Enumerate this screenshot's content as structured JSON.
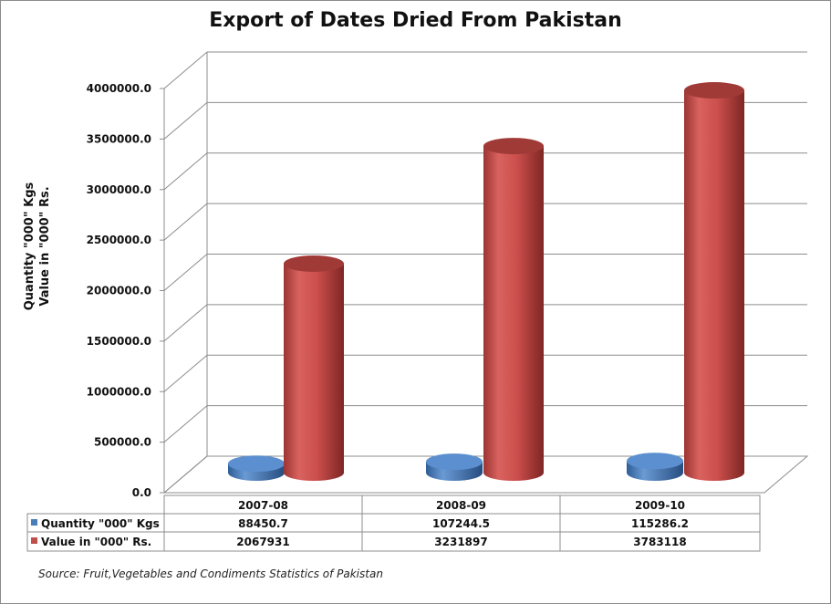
{
  "chart_data": {
    "type": "bar",
    "title": "Export of Dates Dried From Pakistan",
    "ylabel_lines": [
      "Quantity \"000\" Kgs",
      "Value in \"000\" Rs."
    ],
    "categories": [
      "2007-08",
      "2008-09",
      "2009-10"
    ],
    "series": [
      {
        "name": "Quantity \"000\" Kgs",
        "values": [
          88450.7,
          107244.5,
          115286.2
        ],
        "display": [
          "88450.7",
          "107244.5",
          "115286.2"
        ],
        "color": "#4a7ebb"
      },
      {
        "name": "Value in \"000\" Rs.",
        "values": [
          2067931,
          3231897,
          3783118
        ],
        "display": [
          "2067931",
          "3231897",
          "3783118"
        ],
        "color": "#c0504d"
      }
    ],
    "ylim": [
      0,
      4000000
    ],
    "yticks": [
      "0.0",
      "500000.0",
      "1000000.0",
      "1500000.0",
      "2000000.0",
      "2500000.0",
      "3000000.0",
      "3500000.0",
      "4000000.0"
    ],
    "grid": true,
    "data_table": true,
    "source": "Source: Fruit,Vegetables and Condiments Statistics of Pakistan"
  }
}
